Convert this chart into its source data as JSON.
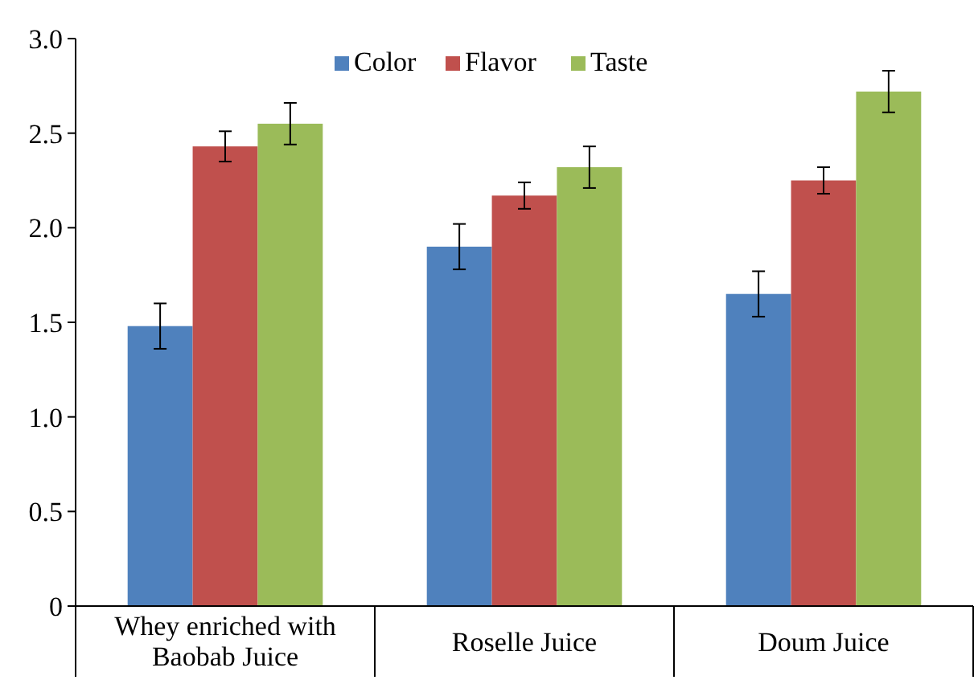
{
  "chart_data": {
    "type": "bar",
    "categories": [
      "Whey enriched with Baobab Juice",
      "Roselle Juice",
      "Doum Juice"
    ],
    "series": [
      {
        "name": "Color",
        "color": "#4f81bd",
        "values": [
          1.48,
          1.9,
          1.65
        ],
        "errors": [
          0.12,
          0.12,
          0.12
        ]
      },
      {
        "name": "Flavor",
        "color": "#c0504d",
        "values": [
          2.43,
          2.17,
          2.25
        ],
        "errors": [
          0.08,
          0.07,
          0.07
        ]
      },
      {
        "name": "Taste",
        "color": "#9bbb59",
        "values": [
          2.55,
          2.32,
          2.72
        ],
        "errors": [
          0.11,
          0.11,
          0.11
        ]
      }
    ],
    "ylim": [
      0,
      3
    ],
    "yticks": [
      {
        "value": 0,
        "label": "0"
      },
      {
        "value": 0.5,
        "label": "0.5"
      },
      {
        "value": 1,
        "label": "1.0"
      },
      {
        "value": 1.5,
        "label": "1.5"
      },
      {
        "value": 2,
        "label": "2.0"
      },
      {
        "value": 2.5,
        "label": "2.5"
      },
      {
        "value": 3,
        "label": "3.0"
      }
    ],
    "grid": false,
    "legend": "top"
  }
}
